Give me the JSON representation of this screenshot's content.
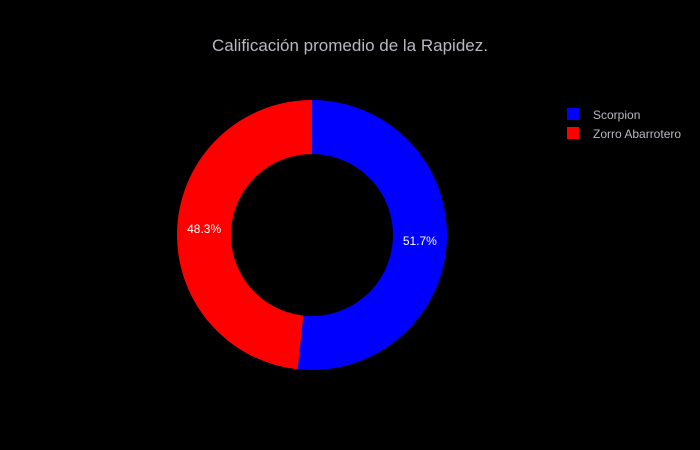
{
  "chart_data": {
    "type": "pie",
    "hole": 0.6,
    "title": "Calificación promedio de la Rapidez.",
    "slices": [
      {
        "name": "Scorpion",
        "percent": 51.7,
        "label": "51.7%",
        "color": "#0000ff"
      },
      {
        "name": "Zorro Abarrotero",
        "percent": 48.3,
        "label": "48.3%",
        "color": "#ff0000"
      }
    ],
    "legend": {
      "position": "top-right"
    }
  },
  "theme": {
    "background": "#000000",
    "title_color": "#b8b8c4",
    "label_color": "#ffffff",
    "legend_text_color": "#b8b8c4"
  }
}
